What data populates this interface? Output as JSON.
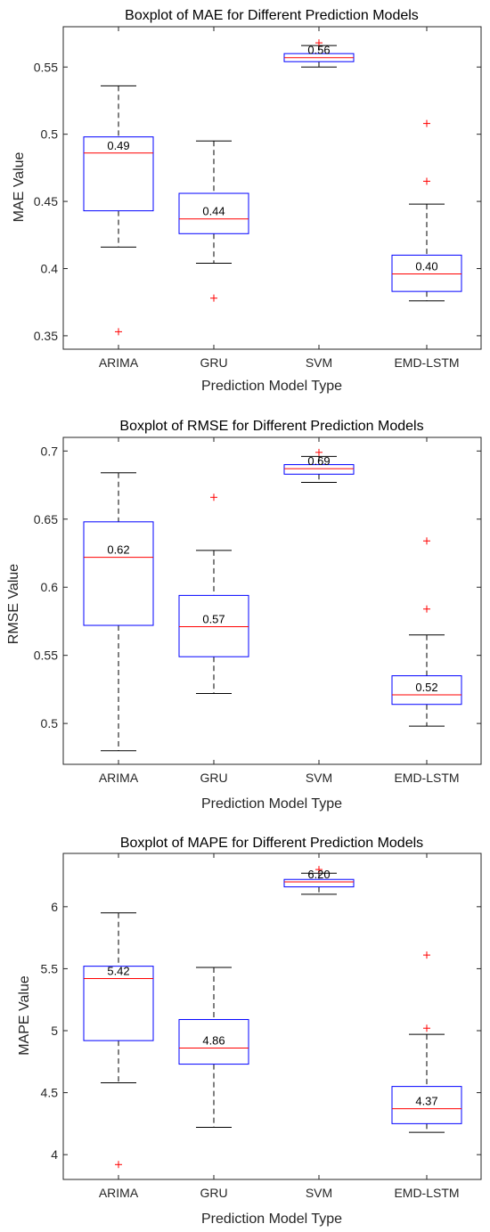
{
  "chart_data": [
    {
      "type": "box",
      "title": "Boxplot of MAE for Different Prediction Models",
      "xlabel": "Prediction Model Type",
      "ylabel": "MAE Value",
      "categories": [
        "ARIMA",
        "GRU",
        "SVM",
        "EMD-LSTM"
      ],
      "ylim": [
        0.34,
        0.58
      ],
      "yticks": [
        0.35,
        0.4,
        0.45,
        0.5,
        0.55
      ],
      "ytick_labels": [
        "0.35",
        "0.4",
        "0.45",
        "0.5",
        "0.55"
      ],
      "boxes": [
        {
          "whisker_low": 0.416,
          "q1": 0.443,
          "median": 0.486,
          "q3": 0.498,
          "whisker_high": 0.536,
          "outliers": [
            0.353
          ],
          "label": "0.49"
        },
        {
          "whisker_low": 0.404,
          "q1": 0.426,
          "median": 0.437,
          "q3": 0.456,
          "whisker_high": 0.495,
          "outliers": [
            0.378
          ],
          "label": "0.44"
        },
        {
          "whisker_low": 0.55,
          "q1": 0.554,
          "median": 0.557,
          "q3": 0.56,
          "whisker_high": 0.566,
          "outliers": [
            0.568
          ],
          "label": "0.56"
        },
        {
          "whisker_low": 0.376,
          "q1": 0.383,
          "median": 0.396,
          "q3": 0.41,
          "whisker_high": 0.448,
          "outliers": [
            0.465,
            0.508
          ],
          "label": "0.40"
        }
      ]
    },
    {
      "type": "box",
      "title": "Boxplot of RMSE for Different Prediction Models",
      "xlabel": "Prediction Model Type",
      "ylabel": "RMSE Value",
      "categories": [
        "ARIMA",
        "GRU",
        "SVM",
        "EMD-LSTM"
      ],
      "ylim": [
        0.47,
        0.71
      ],
      "yticks": [
        0.5,
        0.55,
        0.6,
        0.65,
        0.7
      ],
      "ytick_labels": [
        "0.5",
        "0.55",
        "0.6",
        "0.65",
        "0.7"
      ],
      "boxes": [
        {
          "whisker_low": 0.48,
          "q1": 0.572,
          "median": 0.622,
          "q3": 0.648,
          "whisker_high": 0.684,
          "outliers": [],
          "label": "0.62"
        },
        {
          "whisker_low": 0.522,
          "q1": 0.549,
          "median": 0.571,
          "q3": 0.594,
          "whisker_high": 0.627,
          "outliers": [
            0.666
          ],
          "label": "0.57"
        },
        {
          "whisker_low": 0.677,
          "q1": 0.683,
          "median": 0.687,
          "q3": 0.69,
          "whisker_high": 0.696,
          "outliers": [
            0.699
          ],
          "label": "0.69"
        },
        {
          "whisker_low": 0.498,
          "q1": 0.514,
          "median": 0.521,
          "q3": 0.535,
          "whisker_high": 0.565,
          "outliers": [
            0.584,
            0.634
          ],
          "label": "0.52"
        }
      ]
    },
    {
      "type": "box",
      "title": "Boxplot of MAPE for Different Prediction Models",
      "xlabel": "Prediction Model Type",
      "ylabel": "MAPE Value",
      "categories": [
        "ARIMA",
        "GRU",
        "SVM",
        "EMD-LSTM"
      ],
      "ylim": [
        3.8,
        6.43
      ],
      "yticks": [
        4,
        4.5,
        5,
        5.5,
        6
      ],
      "ytick_labels": [
        "4",
        "4.5",
        "5",
        "5.5",
        "6"
      ],
      "boxes": [
        {
          "whisker_low": 4.58,
          "q1": 4.92,
          "median": 5.42,
          "q3": 5.52,
          "whisker_high": 5.95,
          "outliers": [
            3.92
          ],
          "label": "5.42"
        },
        {
          "whisker_low": 4.22,
          "q1": 4.73,
          "median": 4.86,
          "q3": 5.09,
          "whisker_high": 5.51,
          "outliers": [],
          "label": "4.86"
        },
        {
          "whisker_low": 6.1,
          "q1": 6.16,
          "median": 6.2,
          "q3": 6.22,
          "whisker_high": 6.27,
          "outliers": [
            6.3
          ],
          "label": "6.20"
        },
        {
          "whisker_low": 4.18,
          "q1": 4.25,
          "median": 4.37,
          "q3": 4.55,
          "whisker_high": 4.97,
          "outliers": [
            5.02,
            5.61
          ],
          "label": "4.37"
        }
      ]
    }
  ],
  "colors": {
    "box": "#0000ff",
    "median": "#ff0000",
    "whisker": "#000000",
    "outlier": "#ff0000",
    "axis": "#262626"
  }
}
